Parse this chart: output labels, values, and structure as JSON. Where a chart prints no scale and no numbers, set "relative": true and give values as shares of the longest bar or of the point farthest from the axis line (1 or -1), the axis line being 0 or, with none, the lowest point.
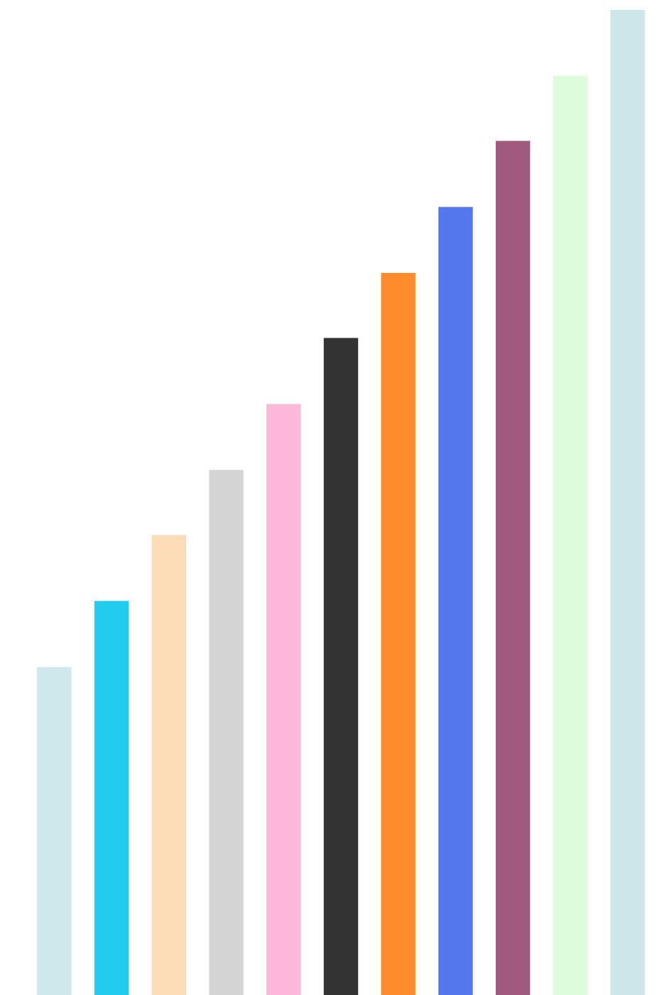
{
  "chart_data": {
    "type": "bar",
    "relative": true,
    "categories": [
      null,
      null,
      null,
      null,
      null,
      null,
      null,
      null,
      null,
      null,
      null
    ],
    "values": [
      0.333,
      0.4,
      0.467,
      0.533,
      0.6,
      0.667,
      0.733,
      0.8,
      0.867,
      0.933,
      1.0
    ],
    "colors": [
      "#cfe8ec",
      "#22ccee",
      "#fddcb8",
      "#d4d4d4",
      "#fbb8d8",
      "#333333",
      "#ff8c2a",
      "#5577ee",
      "#a05a80",
      "#ddfcdc",
      "#cce6ea"
    ],
    "grid": false,
    "legend": false
  }
}
